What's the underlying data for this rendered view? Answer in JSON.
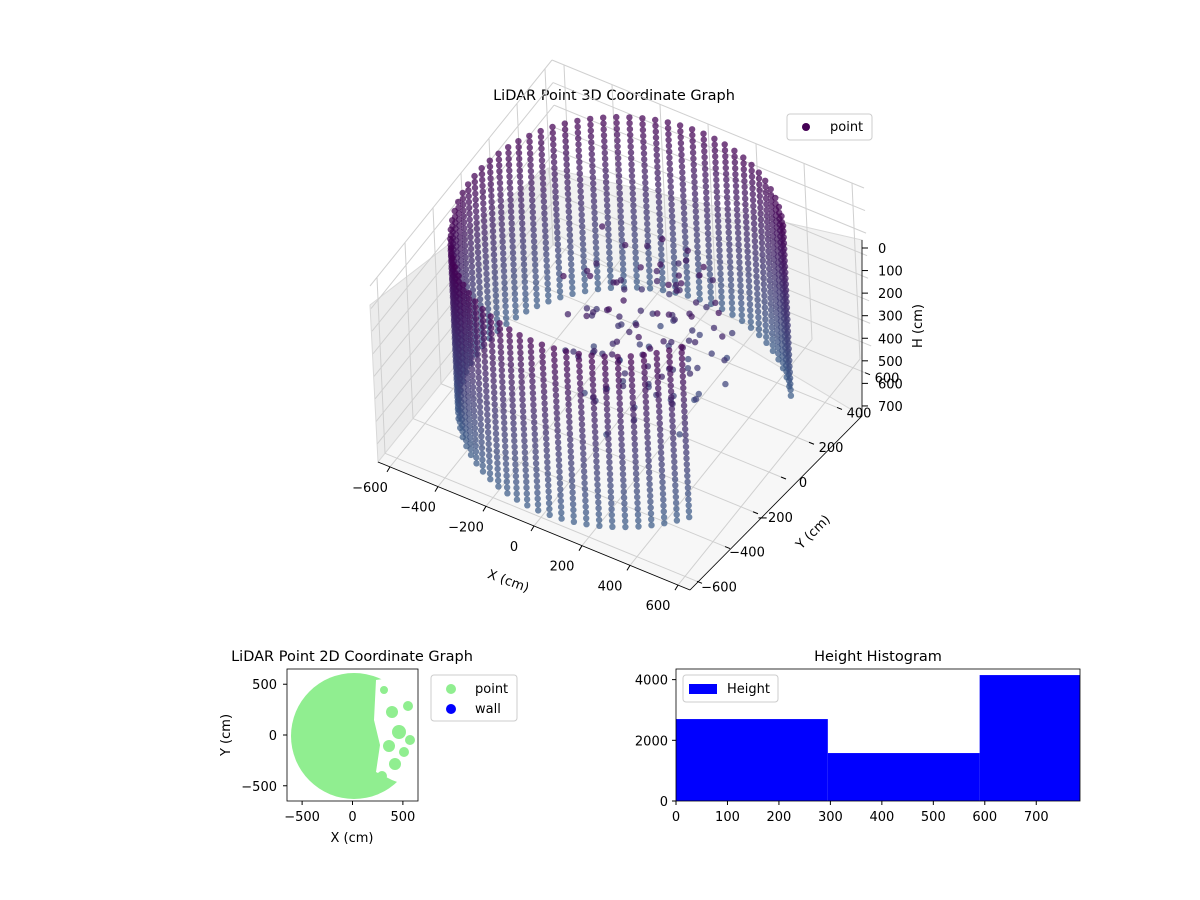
{
  "chart_data": [
    {
      "type": "scatter",
      "title": "LiDAR Point 3D Coordinate Graph",
      "xlabel": "X (cm)",
      "ylabel": "Y (cm)",
      "zlabel": "H (cm)",
      "x_ticks": [
        "−600",
        "−400",
        "−200",
        "0",
        "200",
        "400",
        "600"
      ],
      "y_ticks": [
        "−600",
        "−400",
        "−200",
        "0",
        "200",
        "400",
        "600"
      ],
      "z_ticks": [
        "0",
        "100",
        "200",
        "300",
        "400",
        "500",
        "600",
        "700"
      ],
      "xlim": [
        -650,
        650
      ],
      "ylim": [
        -650,
        650
      ],
      "zlim": [
        0,
        780
      ],
      "z_inverted": true,
      "grid": true,
      "legend": {
        "placement": "top-right",
        "entries": [
          "point"
        ]
      },
      "series": [
        {
          "name": "point",
          "colormap": "viridis",
          "color_top": "#440154",
          "color_bottom": "#3b5f8a",
          "description_shape": "cylindrical wall of points, radius ~600 cm, open on +X side"
        }
      ]
    },
    {
      "type": "scatter",
      "title": "LiDAR Point 2D Coordinate Graph",
      "xlabel": "X (cm)",
      "ylabel": "Y (cm)",
      "x_ticks": [
        "−500",
        "0",
        "500"
      ],
      "y_ticks": [
        "500",
        "0",
        "−500"
      ],
      "xlim": [
        -650,
        650
      ],
      "ylim": [
        -650,
        650
      ],
      "legend": {
        "placement": "outside-right",
        "entries": [
          "point",
          "wall"
        ]
      },
      "series": [
        {
          "name": "point",
          "color": "#90ee90"
        },
        {
          "name": "wall",
          "color": "#0000ff"
        }
      ]
    },
    {
      "type": "bar",
      "title": "Height Histogram",
      "x_ticks": [
        "0",
        "100",
        "200",
        "300",
        "400",
        "500",
        "600",
        "700"
      ],
      "y_ticks": [
        "0",
        "2000",
        "4000"
      ],
      "xlim": [
        0,
        785
      ],
      "ylim": [
        0,
        4350
      ],
      "legend": {
        "placement": "top-left",
        "entries": [
          "Height"
        ]
      },
      "color": "#0000ff",
      "bins": [
        {
          "from": 0,
          "to": 295,
          "count": 2700
        },
        {
          "from": 295,
          "to": 590,
          "count": 1580
        },
        {
          "from": 590,
          "to": 785,
          "count": 4150
        }
      ]
    }
  ]
}
